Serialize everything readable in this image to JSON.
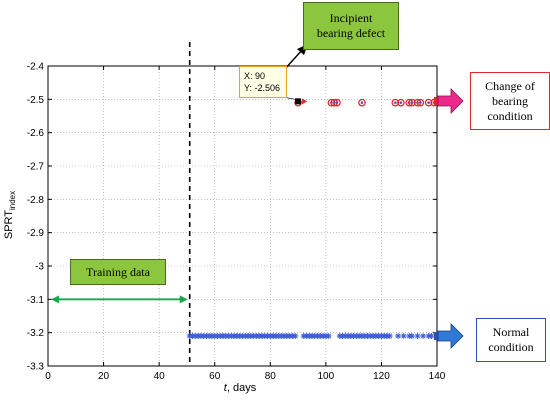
{
  "chart_data": {
    "type": "scatter",
    "xlabel_italic": "t",
    "xlabel_rest": ", days",
    "ylabel_main": "SPRT",
    "ylabel_sub": "index",
    "xlim": [
      0,
      140
    ],
    "ylim": [
      -3.3,
      -2.4
    ],
    "xticks": [
      0,
      20,
      40,
      60,
      80,
      100,
      120,
      140
    ],
    "yticks": [
      -2.4,
      -2.5,
      -2.6,
      -2.7,
      -2.8,
      -2.9,
      -3,
      -3.1,
      -3.2,
      -3.3
    ],
    "grid": "dotted",
    "training_end": 51,
    "series": [
      {
        "marker": "star",
        "color": "#3a5bd6",
        "x": [
          51,
          52,
          53,
          54,
          55,
          56,
          57,
          58,
          59,
          60,
          61,
          62,
          63,
          64,
          65,
          66,
          67,
          68,
          69,
          70,
          71,
          72,
          73,
          74,
          75,
          76,
          77,
          78,
          79,
          80,
          81,
          82,
          83,
          84,
          85,
          86,
          87,
          88,
          89,
          92,
          93,
          94,
          95,
          96,
          97,
          98,
          99,
          100,
          101,
          105,
          106,
          107,
          108,
          109,
          110,
          111,
          112,
          113,
          114,
          115,
          116,
          117,
          118,
          119,
          120,
          121,
          122,
          123,
          126,
          128,
          130,
          131,
          133,
          135,
          137,
          138
        ],
        "y": -3.21
      },
      {
        "marker": "circle",
        "color": "#e0282c",
        "x": [
          90,
          102,
          103,
          104,
          113,
          125,
          127,
          130,
          131,
          133,
          134,
          137,
          139
        ],
        "y": -2.51
      }
    ],
    "datatip": {
      "x_label": "X: 90",
      "y_label": "Y: -2.506",
      "x": 90,
      "y": -2.506
    }
  },
  "annotations": {
    "incipient_line1": "Incipient",
    "incipient_line2": "bearing defect",
    "change_line1": "Change of",
    "change_line2": "bearing",
    "change_line3": "condition",
    "normal_line1": "Normal",
    "normal_line2": "condition",
    "training": "Training data"
  }
}
